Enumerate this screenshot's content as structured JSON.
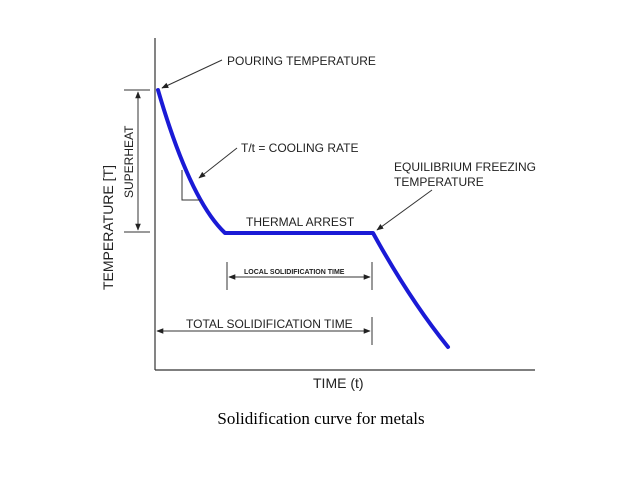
{
  "colors": {
    "curve": "#1a1ad6",
    "ink": "#222222"
  },
  "axes": {
    "x_label": "TIME (t)",
    "y_label": "TEMPERATURE [T]"
  },
  "annotations": {
    "pouring_temperature": "POURING TEMPERATURE",
    "cooling_rate": "T/t = COOLING RATE",
    "equilibrium_line1": "EQUILIBRIUM FREEZING",
    "equilibrium_line2": "TEMPERATURE",
    "thermal_arrest": "THERMAL ARREST",
    "superheat": "SUPERHEAT",
    "local_solidification_time": "LOCAL SOLIDIFICATION TIME",
    "total_solidification_time": "TOTAL SOLIDIFICATION TIME"
  },
  "caption": "Solidification curve for metals"
}
